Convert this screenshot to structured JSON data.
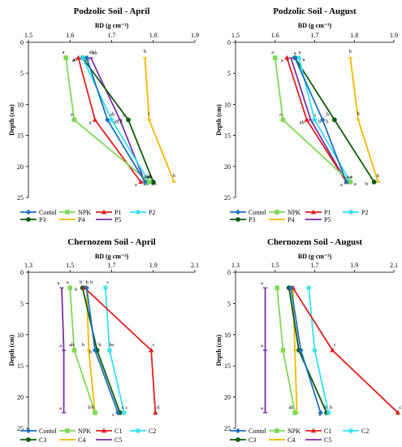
{
  "colors": {
    "Contol": "#1f6fbf",
    "NPK": "#7ed957",
    "P1": "#e02020",
    "P2": "#33e0f0",
    "P3": "#0d5c0d",
    "P4": "#f5b800",
    "P5": "#7b2fa8",
    "C1": "#e02020",
    "C2": "#33e0f0",
    "C3": "#0d5c0d",
    "C4": "#f5b800",
    "C5": "#7b2fa8"
  },
  "chart_data": [
    {
      "type": "line",
      "title": "Podzolic Soil - April",
      "xlabel": "BD (g cm⁻³)",
      "ylabel": "Depth (cm)",
      "xlim": [
        1.5,
        1.9
      ],
      "ylim": [
        0,
        25
      ],
      "xticks": [
        "1.5",
        "1.6",
        "1.7",
        "1.8",
        "1.9"
      ],
      "yticks": [
        "0",
        "5",
        "10",
        "15",
        "20",
        "25"
      ],
      "depths": [
        2.5,
        12.5,
        22.5
      ],
      "legend_order": [
        "Contol",
        "NPK",
        "P1",
        "P2",
        "P3",
        "P4",
        "P5"
      ],
      "series": [
        {
          "name": "Contol",
          "values": [
            1.64,
            1.69,
            1.78
          ],
          "letters": [
            "ab",
            "ab",
            "ab"
          ]
        },
        {
          "name": "NPK",
          "values": [
            1.59,
            1.61,
            1.79
          ],
          "letters": [
            "a",
            "a",
            "ab"
          ]
        },
        {
          "name": "P1",
          "values": [
            1.62,
            1.66,
            1.77
          ],
          "letters": [
            "a",
            "a",
            "a"
          ]
        },
        {
          "name": "P2",
          "values": [
            1.63,
            1.7,
            1.79
          ],
          "letters": [
            "ab",
            "ab",
            "ab"
          ]
        },
        {
          "name": "P3",
          "values": [
            1.63,
            1.74,
            1.8
          ],
          "letters": [
            "ab",
            "b",
            "ab"
          ]
        },
        {
          "name": "P4",
          "values": [
            1.78,
            1.79,
            1.85
          ],
          "letters": [
            "b",
            "c",
            "b"
          ]
        },
        {
          "name": "P5",
          "values": [
            1.65,
            1.72,
            1.78
          ],
          "letters": [
            "ab",
            "b",
            "ab"
          ]
        }
      ]
    },
    {
      "type": "line",
      "title": "Podzolic Soil - August",
      "xlabel": "BD (g cm⁻³)",
      "ylabel": "Depth (cm)",
      "xlim": [
        1.5,
        1.9
      ],
      "ylim": [
        0,
        25
      ],
      "xticks": [
        "1.5",
        "1.6",
        "1.7",
        "1.8",
        "1.9"
      ],
      "yticks": [
        "0",
        "5",
        "10",
        "15",
        "20",
        "25"
      ],
      "depths": [
        2.5,
        12.5,
        22.5
      ],
      "legend_order": [
        "Contol",
        "NPK",
        "P1",
        "P2",
        "P3",
        "P4",
        "P5"
      ],
      "series": [
        {
          "name": "Contol",
          "values": [
            1.65,
            1.72,
            1.78
          ],
          "letters": [
            "a",
            "b",
            "a"
          ]
        },
        {
          "name": "NPK",
          "values": [
            1.6,
            1.62,
            1.79
          ],
          "letters": [
            "a",
            "a",
            "a"
          ]
        },
        {
          "name": "P1",
          "values": [
            1.63,
            1.68,
            1.78
          ],
          "letters": [
            "a",
            "ab",
            "a"
          ]
        },
        {
          "name": "P2",
          "values": [
            1.66,
            1.7,
            1.79
          ],
          "letters": [
            "a",
            "b",
            "a"
          ]
        },
        {
          "name": "P3",
          "values": [
            1.65,
            1.75,
            1.85
          ],
          "letters": [
            "a",
            "b",
            "b"
          ]
        },
        {
          "name": "P4",
          "values": [
            1.79,
            1.81,
            1.86
          ],
          "letters": [
            "b",
            "b",
            "b"
          ]
        },
        {
          "name": "P5",
          "values": [
            1.64,
            1.69,
            1.78
          ],
          "letters": [
            "a",
            "a",
            "a"
          ]
        }
      ]
    },
    {
      "type": "line",
      "title": "Chernozem Soil - April",
      "xlabel": "BD (g cm⁻³)",
      "ylabel": "Depth (cm)",
      "xlim": [
        1.3,
        2.1
      ],
      "ylim": [
        0,
        25
      ],
      "xticks": [
        "1.3",
        "1.5",
        "1.7",
        "1.9",
        "2.1"
      ],
      "yticks": [
        "0",
        "5",
        "10",
        "15",
        "20",
        "25"
      ],
      "depths": [
        2.5,
        12.5,
        22.5
      ],
      "legend_order": [
        "Contol",
        "NPK",
        "C1",
        "C2",
        "C3",
        "C4",
        "C5"
      ],
      "series": [
        {
          "name": "Contol",
          "values": [
            1.58,
            1.62,
            1.73
          ],
          "letters": [
            "b",
            "b",
            "c"
          ]
        },
        {
          "name": "NPK",
          "values": [
            1.5,
            1.52,
            1.62
          ],
          "letters": [
            "a",
            "ab",
            "b"
          ]
        },
        {
          "name": "C1",
          "values": [
            1.57,
            1.89,
            1.91
          ],
          "letters": [
            "b",
            "c",
            "d"
          ]
        },
        {
          "name": "C2",
          "values": [
            1.67,
            1.69,
            1.76
          ],
          "letters": [
            "c",
            "bc",
            "c"
          ]
        },
        {
          "name": "C3",
          "values": [
            1.56,
            1.63,
            1.74
          ],
          "letters": [
            "b",
            "b",
            "c"
          ]
        },
        {
          "name": "C4",
          "values": [
            1.58,
            1.59,
            1.62
          ],
          "letters": [
            "b",
            "b",
            "b"
          ]
        },
        {
          "name": "C5",
          "values": [
            1.46,
            1.47,
            1.47
          ],
          "letters": [
            "a",
            "a",
            "a"
          ]
        }
      ]
    },
    {
      "type": "line",
      "title": "Chernozem Soil - August",
      "xlabel": "BD (g cm⁻³)",
      "ylabel": "Depth (cm)",
      "xlim": [
        1.3,
        2.1
      ],
      "ylim": [
        0,
        25
      ],
      "xticks": [
        "1.3",
        "1.5",
        "1.7",
        "1.9",
        "2.1"
      ],
      "yticks": [
        "0",
        "5",
        "10",
        "15",
        "20",
        "25"
      ],
      "depths": [
        2.5,
        12.5,
        22.5
      ],
      "legend_order": [
        "Contol",
        "NPK",
        "C1",
        "C2",
        "C3",
        "C4",
        "C5"
      ],
      "series": [
        {
          "name": "Contol",
          "values": [
            1.58,
            1.63,
            1.73
          ],
          "letters": [
            "",
            "",
            "b"
          ]
        },
        {
          "name": "NPK",
          "values": [
            1.51,
            1.54,
            1.6
          ],
          "letters": [
            "",
            "",
            ""
          ]
        },
        {
          "name": "C1",
          "values": [
            1.59,
            1.79,
            2.12
          ],
          "letters": [
            "",
            "c",
            "c"
          ]
        },
        {
          "name": "C2",
          "values": [
            1.67,
            1.7,
            1.77
          ],
          "letters": [
            "",
            "",
            "b"
          ]
        },
        {
          "name": "C3",
          "values": [
            1.57,
            1.62,
            1.76
          ],
          "letters": [
            "",
            "",
            "b"
          ]
        },
        {
          "name": "C4",
          "values": [
            1.59,
            1.6,
            1.61
          ],
          "letters": [
            "",
            "",
            "ab"
          ]
        },
        {
          "name": "C5",
          "values": [
            1.45,
            1.45,
            1.45
          ],
          "letters": [
            "a",
            "a",
            "a"
          ]
        }
      ]
    }
  ]
}
